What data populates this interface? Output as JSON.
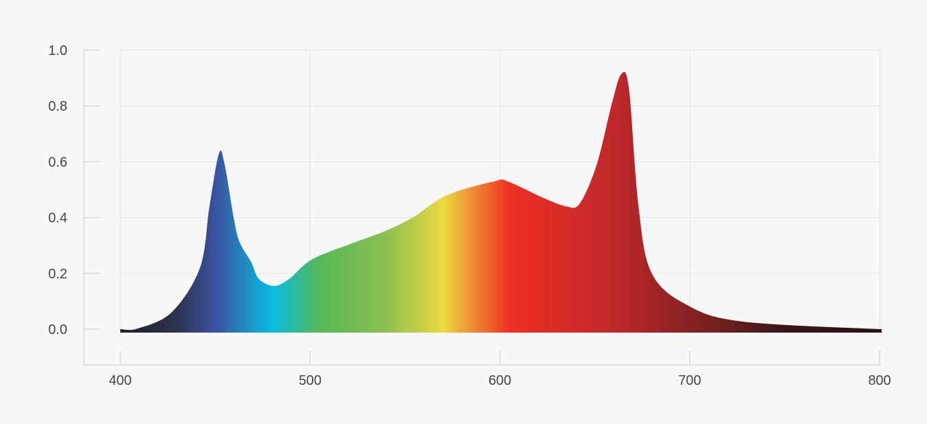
{
  "chart_data": {
    "type": "area",
    "title": "",
    "xlabel": "",
    "ylabel": "",
    "xlim": [
      400,
      800
    ],
    "ylim": [
      0.0,
      1.0
    ],
    "x_ticks": [
      "400",
      "500",
      "600",
      "700",
      "800"
    ],
    "y_ticks": [
      "0.0",
      "0.2",
      "0.4",
      "0.6",
      "0.8",
      "1.0"
    ],
    "grid": true,
    "fill": "visible-spectrum gradient",
    "points": [
      [
        400,
        0.0
      ],
      [
        409,
        0.002
      ],
      [
        427,
        0.06
      ],
      [
        442,
        0.22
      ],
      [
        447,
        0.44
      ],
      [
        452,
        0.63
      ],
      [
        455,
        0.59
      ],
      [
        460,
        0.39
      ],
      [
        463,
        0.31
      ],
      [
        469,
        0.24
      ],
      [
        473,
        0.18
      ],
      [
        481,
        0.155
      ],
      [
        489,
        0.18
      ],
      [
        501,
        0.25
      ],
      [
        523,
        0.31
      ],
      [
        539,
        0.35
      ],
      [
        554,
        0.4
      ],
      [
        572,
        0.48
      ],
      [
        597,
        0.53
      ],
      [
        604,
        0.53
      ],
      [
        623,
        0.47
      ],
      [
        635,
        0.44
      ],
      [
        642,
        0.45
      ],
      [
        651,
        0.59
      ],
      [
        659,
        0.81
      ],
      [
        664,
        0.915
      ],
      [
        668,
        0.86
      ],
      [
        673,
        0.44
      ],
      [
        680,
        0.2
      ],
      [
        699,
        0.085
      ],
      [
        728,
        0.027
      ],
      [
        800,
        0.0
      ]
    ],
    "gradient_stops": [
      [
        400,
        "#1f1f2a"
      ],
      [
        430,
        "#2e3350"
      ],
      [
        450,
        "#3a52a0"
      ],
      [
        480,
        "#08bde0"
      ],
      [
        505,
        "#55b855"
      ],
      [
        540,
        "#8cc050"
      ],
      [
        570,
        "#ecd940"
      ],
      [
        605,
        "#ee3024"
      ],
      [
        660,
        "#c0282a"
      ],
      [
        720,
        "#6a1e1e"
      ],
      [
        750,
        "#3a1518"
      ],
      [
        800,
        "#2a1416"
      ]
    ],
    "colors": {
      "grid": "#e6e6e6",
      "axis": "#d8d8d8",
      "text": "#444444",
      "background": "#f8f8f8"
    }
  }
}
